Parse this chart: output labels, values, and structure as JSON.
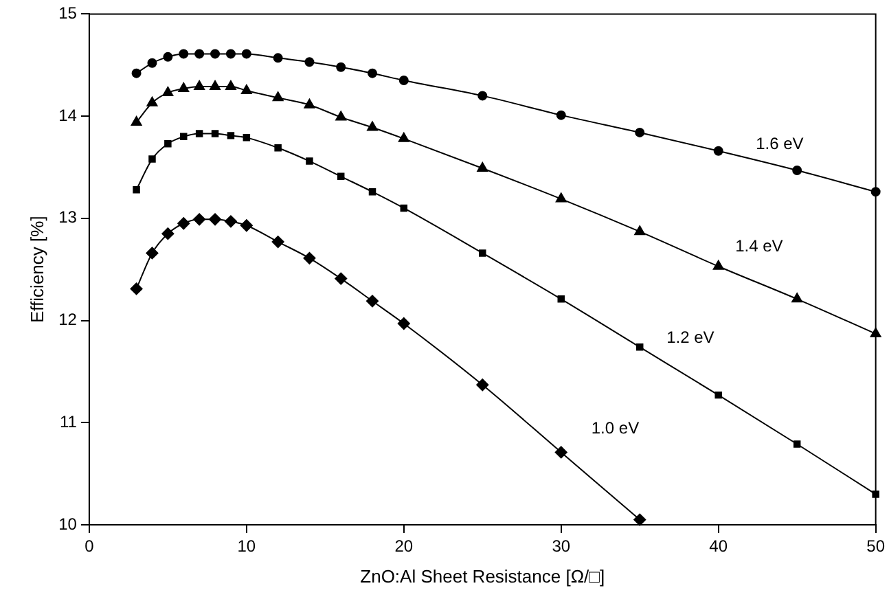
{
  "chart_data": {
    "type": "line",
    "xlabel": "ZnO:Al Sheet Resistance [Ω/□]",
    "ylabel": "Efficiency [%]",
    "xlim": [
      0,
      50
    ],
    "xticks": [
      0,
      10,
      20,
      30,
      40,
      50
    ],
    "ylim": [
      10,
      15
    ],
    "yticks": [
      10,
      11,
      12,
      13,
      14,
      15
    ],
    "grid": false,
    "legend": false,
    "line_style": "solid",
    "series": [
      {
        "name": "1.6 eV",
        "color": "#000000",
        "marker": "circle",
        "x": [
          3,
          4,
          5,
          6,
          7,
          8,
          9,
          10,
          12,
          14,
          16,
          18,
          20,
          25,
          30,
          35,
          40,
          45,
          50
        ],
        "values": [
          14.42,
          14.52,
          14.58,
          14.61,
          14.61,
          14.61,
          14.61,
          14.61,
          14.57,
          14.53,
          14.48,
          14.42,
          14.35,
          14.2,
          14.01,
          13.84,
          13.66,
          13.47,
          13.26
        ]
      },
      {
        "name": "1.4 eV",
        "color": "#000000",
        "marker": "triangle",
        "x": [
          3,
          4,
          5,
          6,
          7,
          8,
          9,
          10,
          12,
          14,
          16,
          18,
          20,
          25,
          30,
          35,
          40,
          45,
          50
        ],
        "values": [
          13.94,
          14.13,
          14.23,
          14.27,
          14.29,
          14.29,
          14.29,
          14.25,
          14.18,
          14.11,
          13.99,
          13.89,
          13.78,
          13.49,
          13.19,
          12.87,
          12.53,
          12.21,
          11.87
        ]
      },
      {
        "name": "1.2 eV",
        "color": "#000000",
        "marker": "square",
        "x": [
          3,
          4,
          5,
          6,
          7,
          8,
          9,
          10,
          12,
          14,
          16,
          18,
          20,
          25,
          30,
          35,
          40,
          45,
          50
        ],
        "values": [
          13.28,
          13.58,
          13.73,
          13.8,
          13.83,
          13.83,
          13.81,
          13.79,
          13.69,
          13.56,
          13.41,
          13.26,
          13.1,
          12.66,
          12.21,
          11.74,
          11.27,
          10.79,
          10.3
        ]
      },
      {
        "name": "1.0 eV",
        "color": "#000000",
        "marker": "diamond",
        "x": [
          3,
          4,
          5,
          6,
          7,
          8,
          9,
          10,
          12,
          14,
          16,
          18,
          20,
          25,
          30,
          35
        ],
        "values": [
          12.31,
          12.66,
          12.85,
          12.95,
          12.99,
          12.99,
          12.97,
          12.93,
          12.77,
          12.61,
          12.41,
          12.19,
          11.97,
          11.37,
          10.71,
          10.05
        ]
      }
    ]
  }
}
